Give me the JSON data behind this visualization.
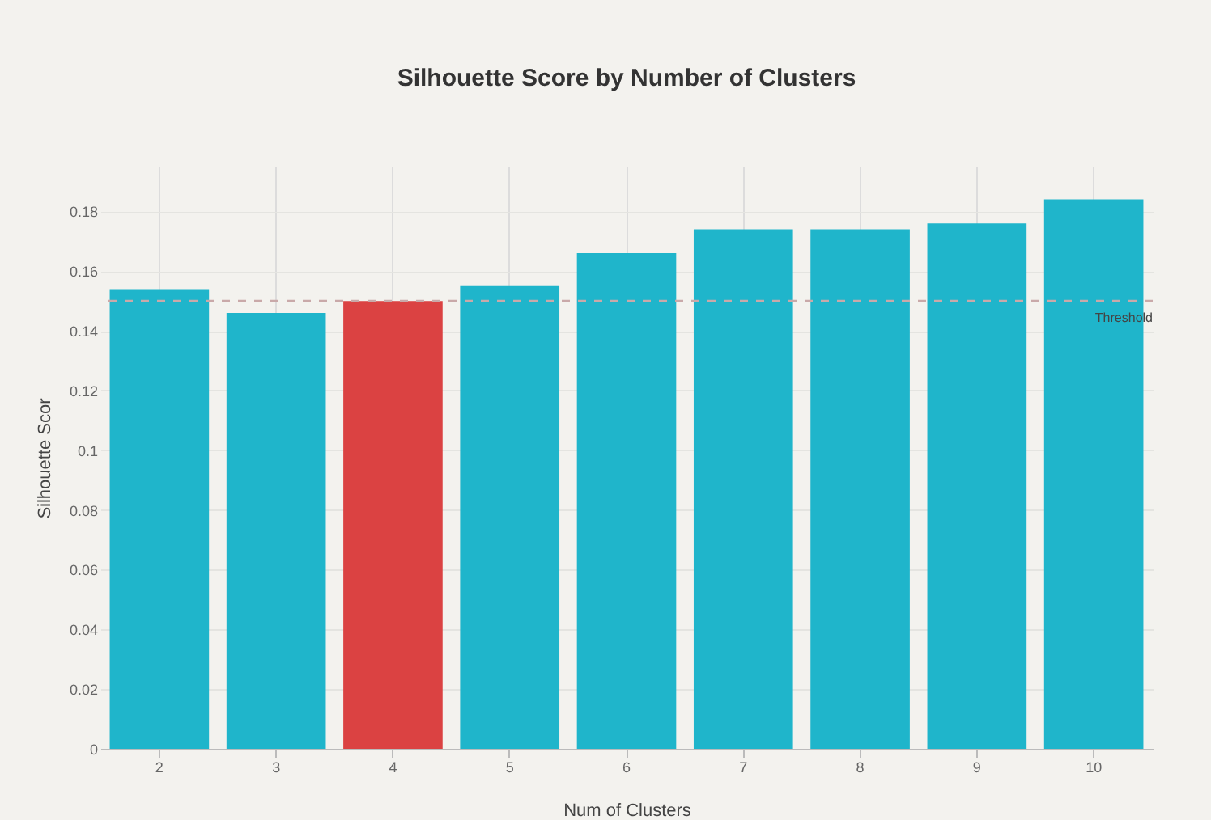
{
  "chart_data": {
    "type": "bar",
    "title": "Silhouette Score by Number of Clusters",
    "xlabel": "Num of Clusters",
    "ylabel": "Silhouette Scor",
    "categories": [
      "2",
      "3",
      "4",
      "5",
      "6",
      "7",
      "8",
      "9",
      "10"
    ],
    "values": [
      0.154,
      0.146,
      0.15,
      0.155,
      0.166,
      0.174,
      0.174,
      0.176,
      0.184
    ],
    "colors": [
      "#1fb5cb",
      "#1fb5cb",
      "#db4242",
      "#1fb5cb",
      "#1fb5cb",
      "#1fb5cb",
      "#1fb5cb",
      "#1fb5cb",
      "#1fb5cb"
    ],
    "ylim": [
      0,
      0.195
    ],
    "yticks": [
      0,
      0.02,
      0.04,
      0.06,
      0.08,
      0.1,
      0.12,
      0.14,
      0.16,
      0.18
    ],
    "grid": true,
    "ref_lines": [
      {
        "axis": "y",
        "value": 0.15,
        "label": "Threshold",
        "color": "#c9a9a9",
        "line_style": "dashed"
      }
    ]
  }
}
